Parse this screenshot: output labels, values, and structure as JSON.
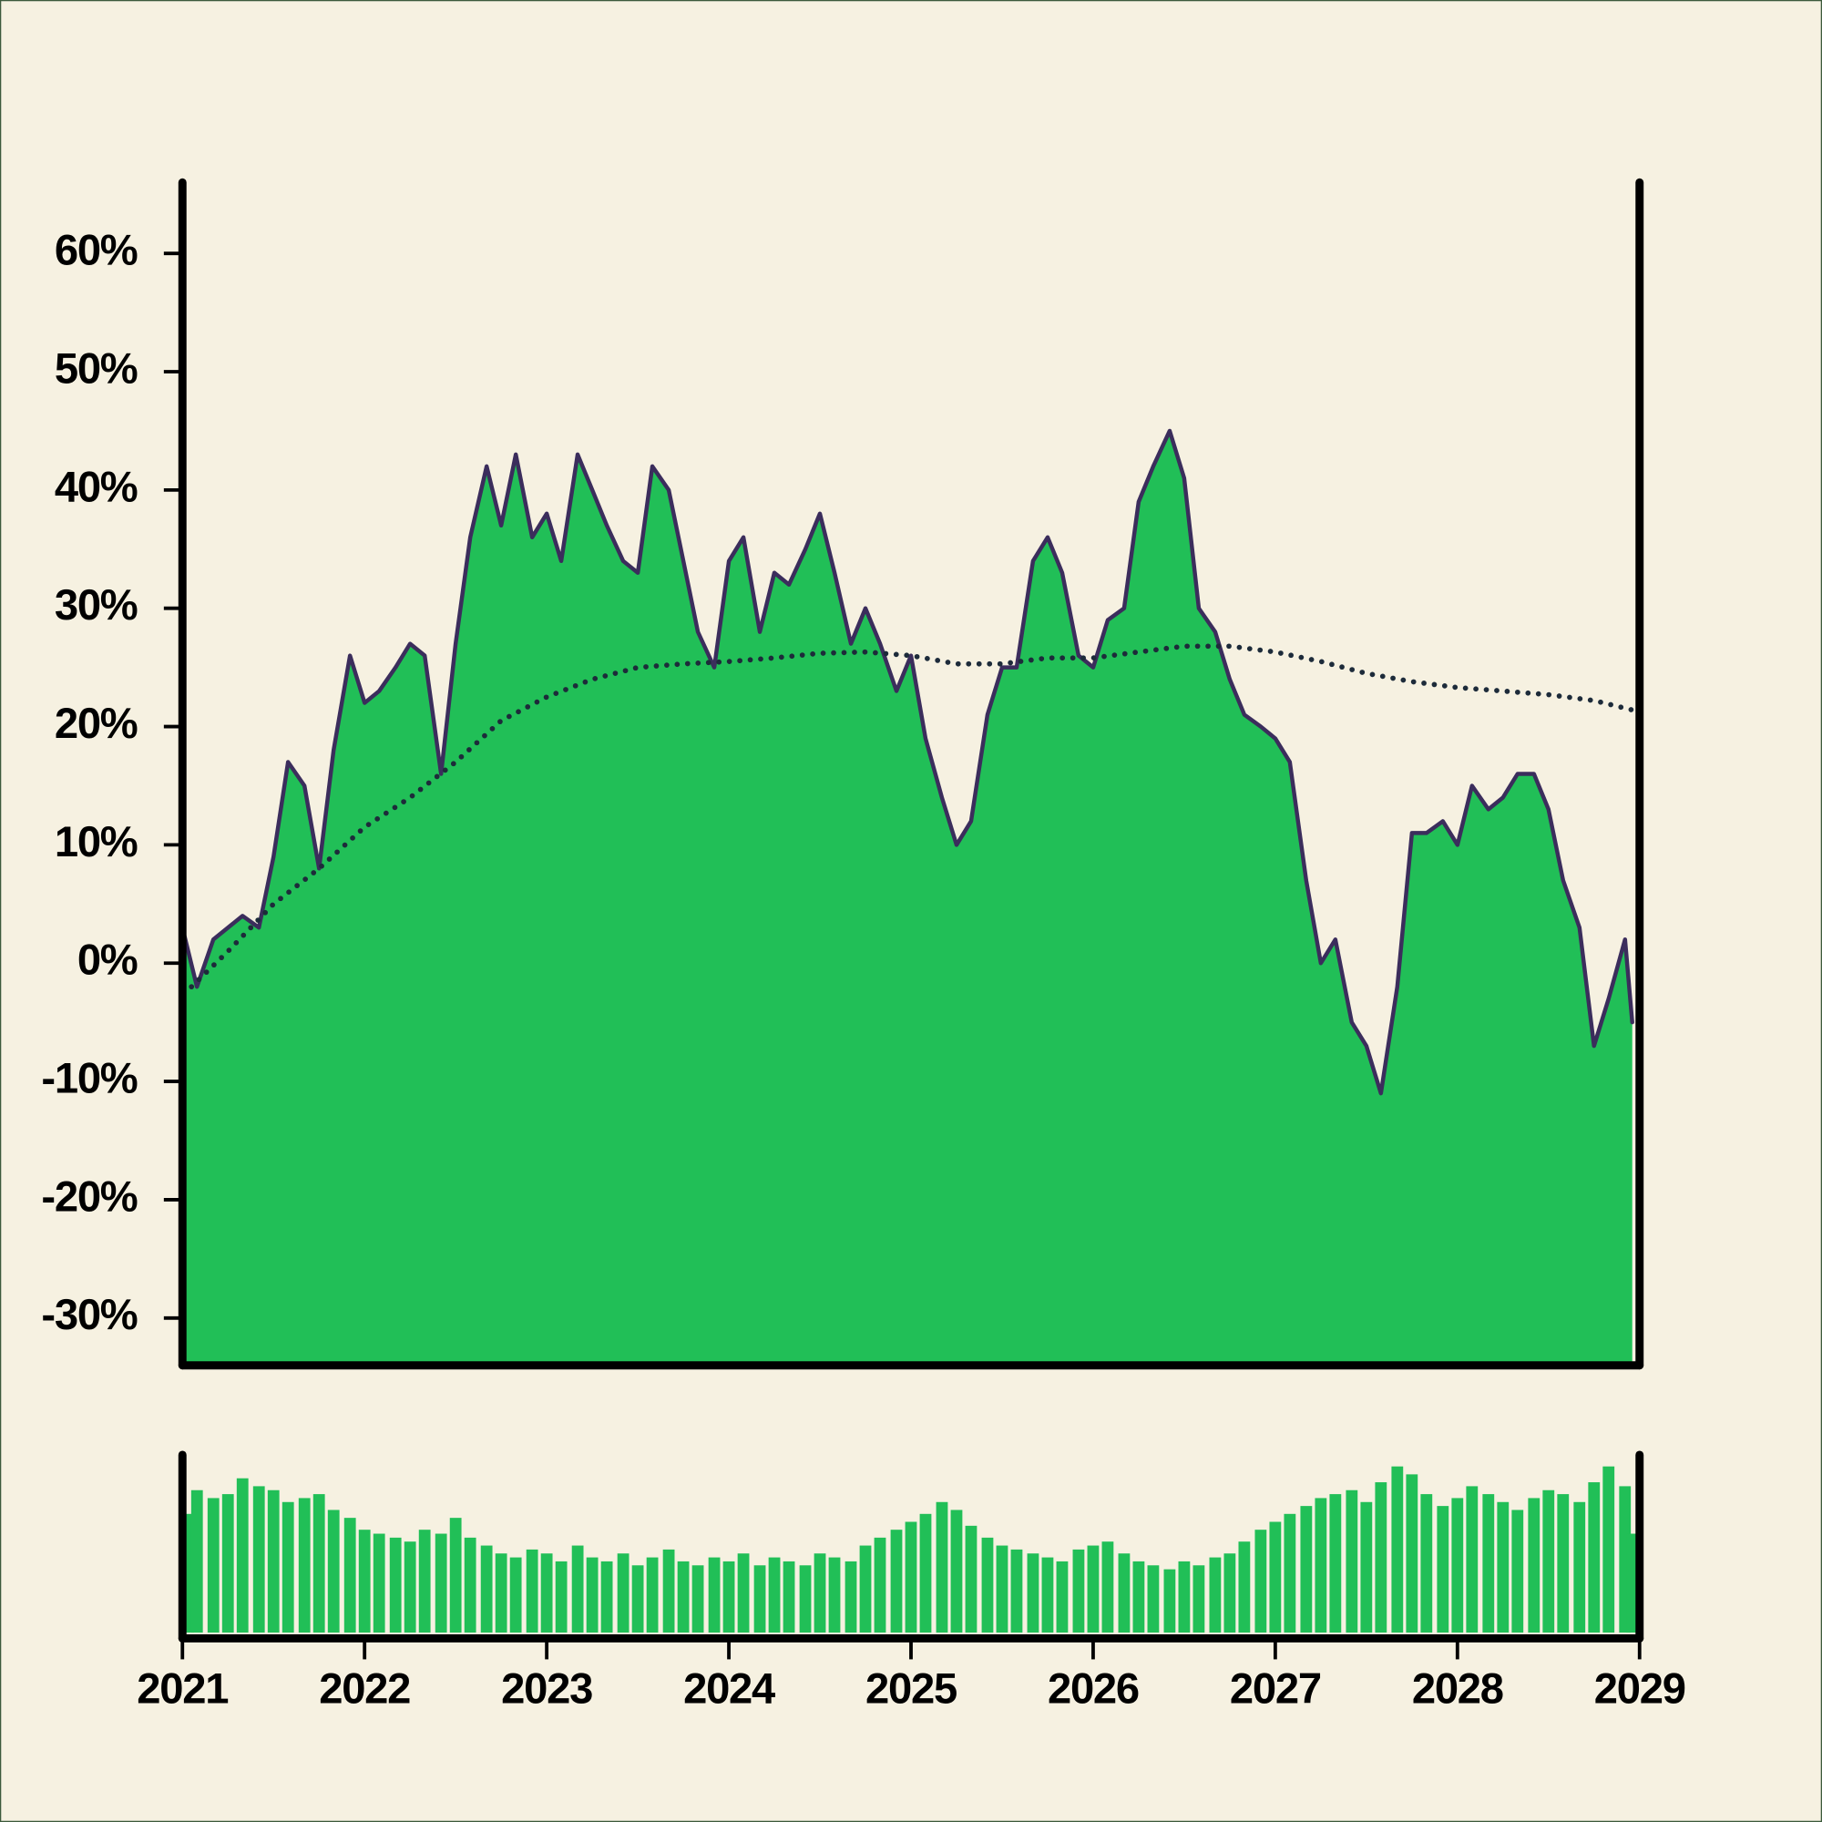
{
  "chart_data": {
    "type": "area",
    "x": [
      2021.0,
      2021.08,
      2021.17,
      2021.25,
      2021.33,
      2021.42,
      2021.5,
      2021.58,
      2021.67,
      2021.75,
      2021.83,
      2021.92,
      2022.0,
      2022.08,
      2022.17,
      2022.25,
      2022.33,
      2022.42,
      2022.5,
      2022.58,
      2022.67,
      2022.75,
      2022.83,
      2022.92,
      2023.0,
      2023.08,
      2023.17,
      2023.25,
      2023.33,
      2023.42,
      2023.5,
      2023.58,
      2023.67,
      2023.75,
      2023.83,
      2023.92,
      2024.0,
      2024.08,
      2024.17,
      2024.25,
      2024.33,
      2024.42,
      2024.5,
      2024.58,
      2024.67,
      2024.75,
      2024.83,
      2024.92,
      2025.0,
      2025.08,
      2025.17,
      2025.25,
      2025.33,
      2025.42,
      2025.5,
      2025.58,
      2025.67,
      2025.75,
      2025.83,
      2025.92,
      2026.0,
      2026.08,
      2026.17,
      2026.25,
      2026.33,
      2026.42,
      2026.5,
      2026.58,
      2026.67,
      2026.75,
      2026.83,
      2026.92,
      2027.0,
      2027.08,
      2027.17,
      2027.25,
      2027.33,
      2027.42,
      2027.5,
      2027.58,
      2027.67,
      2027.75,
      2027.83,
      2027.92,
      2028.0,
      2028.08,
      2028.17,
      2028.25,
      2028.33,
      2028.42,
      2028.5,
      2028.58,
      2028.67,
      2028.75,
      2028.83,
      2028.92,
      2028.96
    ],
    "series": [
      {
        "color": "#3b2d5c",
        "fill": "#21bf57",
        "values": [
          3,
          -2,
          2,
          3,
          4,
          3,
          9,
          17,
          15,
          8,
          18,
          26,
          22,
          23,
          25,
          27,
          26,
          16,
          27,
          36,
          42,
          37,
          43,
          36,
          38,
          34,
          43,
          40,
          37,
          34,
          33,
          42,
          40,
          34,
          28,
          25,
          34,
          36,
          28,
          33,
          32,
          35,
          38,
          33,
          27,
          30,
          27,
          23,
          26,
          19,
          14,
          10,
          12,
          21,
          25,
          25,
          34,
          36,
          33,
          26,
          25,
          29,
          30,
          39,
          42,
          45,
          41,
          30,
          28,
          24,
          21,
          20,
          19,
          17,
          7,
          0,
          2,
          -5,
          -7,
          -11,
          -2,
          11,
          11,
          12,
          10,
          15,
          13,
          14,
          16,
          16,
          13,
          7,
          3,
          -7,
          -3,
          2,
          -5
        ]
      },
      {
        "color": "#1d2b3a",
        "style": "dotted",
        "x": [
          2021.05,
          2021.25,
          2021.5,
          2021.75,
          2022.0,
          2022.25,
          2022.5,
          2022.75,
          2023.0,
          2023.25,
          2023.5,
          2023.75,
          2024.0,
          2024.25,
          2024.5,
          2024.75,
          2025.0,
          2025.25,
          2025.5,
          2025.75,
          2026.0,
          2026.25,
          2026.5,
          2026.75,
          2027.0,
          2027.25,
          2027.5,
          2027.75,
          2028.0,
          2028.25,
          2028.5,
          2028.75,
          2028.96
        ],
        "values": [
          -2,
          1,
          5,
          8,
          11.5,
          14,
          17,
          20.5,
          22.5,
          24,
          25,
          25.3,
          25.5,
          25.8,
          26.2,
          26.3,
          26,
          25.3,
          25.3,
          25.8,
          25.8,
          26.3,
          26.8,
          26.8,
          26.3,
          25.5,
          24.5,
          23.8,
          23.3,
          23,
          22.7,
          22.2,
          21.4
        ]
      }
    ],
    "volume": {
      "color": "#21bf57",
      "values": [
        60,
        72,
        68,
        70,
        78,
        74,
        72,
        66,
        68,
        70,
        62,
        58,
        52,
        50,
        48,
        46,
        52,
        50,
        58,
        48,
        44,
        40,
        38,
        42,
        40,
        36,
        44,
        38,
        36,
        40,
        34,
        38,
        42,
        36,
        34,
        38,
        36,
        40,
        34,
        38,
        36,
        34,
        40,
        38,
        36,
        44,
        48,
        52,
        56,
        60,
        66,
        62,
        54,
        48,
        44,
        42,
        40,
        38,
        36,
        42,
        44,
        46,
        40,
        36,
        34,
        32,
        36,
        34,
        38,
        40,
        46,
        52,
        56,
        60,
        64,
        68,
        70,
        72,
        66,
        76,
        84,
        80,
        70,
        64,
        68,
        74,
        70,
        66,
        62,
        68,
        72,
        70,
        66,
        76,
        84,
        74,
        50
      ]
    },
    "xlim": [
      2021,
      2029
    ],
    "xticks": [
      2021,
      2022,
      2023,
      2024,
      2025,
      2026,
      2027,
      2028,
      2029
    ],
    "ylim": [
      -34,
      66
    ],
    "yticks": [
      {
        "value": -30,
        "label": "-30%"
      },
      {
        "value": -20,
        "label": "-20%"
      },
      {
        "value": -10,
        "label": "-10%"
      },
      {
        "value": 0,
        "label": "0%"
      },
      {
        "value": 10,
        "label": "10%"
      },
      {
        "value": 20,
        "label": "20%"
      },
      {
        "value": 30,
        "label": "30%"
      },
      {
        "value": 40,
        "label": "40%"
      },
      {
        "value": 50,
        "label": "50%"
      },
      {
        "value": 60,
        "label": "60%"
      }
    ]
  }
}
